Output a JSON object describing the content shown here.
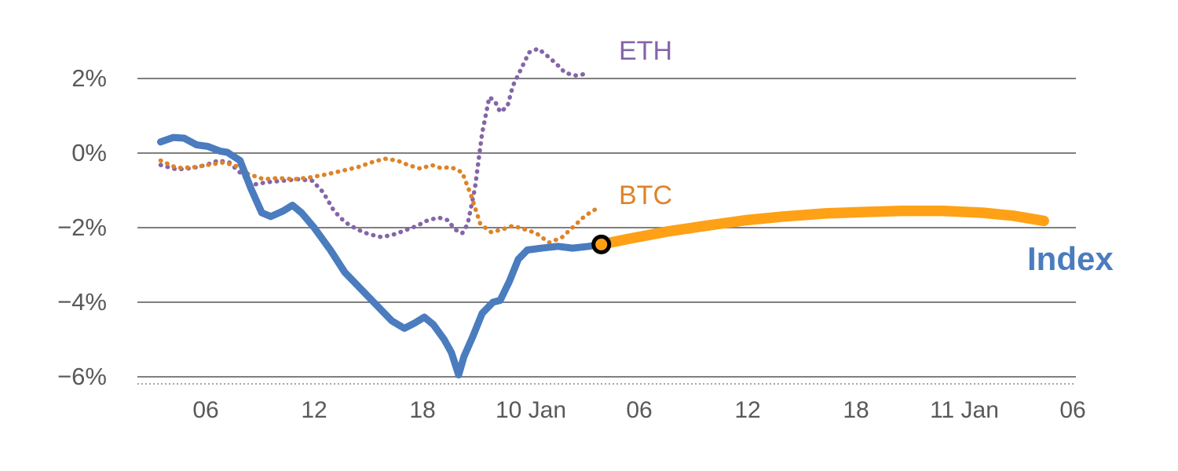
{
  "chart_data": {
    "type": "line",
    "title": "",
    "xlabel": "",
    "ylabel": "",
    "grid": true,
    "legend_position": "inline-annotations",
    "x_axis_note": "t = hours, 6-hour ticks spanning 9 Jan through 11 Jan",
    "xlim_hours": [
      2.2,
      54.3
    ],
    "ylim": [
      -6.6,
      3.1
    ],
    "colors": {
      "grid": "#7f7f7f",
      "axis_baseline": "#a6a6a6",
      "tick_text": "#595959",
      "marker_ring": "#000000"
    },
    "y_ticks": [
      {
        "value": 2,
        "label": "2%"
      },
      {
        "value": 0,
        "label": "0%"
      },
      {
        "value": -2,
        "label": "−2%"
      },
      {
        "value": -4,
        "label": "−4%"
      },
      {
        "value": -6,
        "label": "−6%"
      }
    ],
    "x_ticks": [
      {
        "t": 6,
        "label": "06"
      },
      {
        "t": 12,
        "label": "12"
      },
      {
        "t": 18,
        "label": "18"
      },
      {
        "t": 24,
        "label": "10 Jan"
      },
      {
        "t": 30,
        "label": "06"
      },
      {
        "t": 36,
        "label": "12"
      },
      {
        "t": 42,
        "label": "18"
      },
      {
        "t": 48,
        "label": "11 Jan"
      },
      {
        "t": 54,
        "label": "06"
      }
    ],
    "series": [
      {
        "id": "eth",
        "name": "ETH",
        "color": "#8465A8",
        "style": "dotted",
        "width": 5.5,
        "points": [
          [
            3.5,
            -0.32
          ],
          [
            4.4,
            -0.44
          ],
          [
            5.3,
            -0.4
          ],
          [
            6,
            -0.32
          ],
          [
            6.7,
            -0.2
          ],
          [
            7.3,
            -0.25
          ],
          [
            8,
            -0.57
          ],
          [
            8.6,
            -0.85
          ],
          [
            9.4,
            -0.78
          ],
          [
            10.3,
            -0.74
          ],
          [
            11.1,
            -0.7
          ],
          [
            11.9,
            -0.74
          ],
          [
            12.5,
            -1.05
          ],
          [
            13.1,
            -1.55
          ],
          [
            13.7,
            -1.85
          ],
          [
            14.4,
            -2.05
          ],
          [
            15,
            -2.17
          ],
          [
            15.7,
            -2.25
          ],
          [
            16.3,
            -2.2
          ],
          [
            17,
            -2.08
          ],
          [
            17.7,
            -1.95
          ],
          [
            18.3,
            -1.8
          ],
          [
            18.9,
            -1.73
          ],
          [
            19.4,
            -1.8
          ],
          [
            19.8,
            -2.05
          ],
          [
            20.2,
            -2.15
          ],
          [
            20.5,
            -1.9
          ],
          [
            20.9,
            -0.95
          ],
          [
            21.3,
            0.53
          ],
          [
            21.7,
            1.5
          ],
          [
            22,
            1.4
          ],
          [
            22.3,
            1.1
          ],
          [
            22.7,
            1.25
          ],
          [
            23,
            1.8
          ],
          [
            23.5,
            2.3
          ],
          [
            23.9,
            2.7
          ],
          [
            24.4,
            2.8
          ],
          [
            24.8,
            2.65
          ],
          [
            25.4,
            2.4
          ],
          [
            25.9,
            2.15
          ],
          [
            26.5,
            2.08
          ],
          [
            27,
            2.12
          ]
        ]
      },
      {
        "id": "btc",
        "name": "BTC",
        "color": "#DE8327",
        "style": "dotted",
        "width": 5.5,
        "points": [
          [
            3.5,
            -0.2
          ],
          [
            4.4,
            -0.4
          ],
          [
            5.3,
            -0.38
          ],
          [
            6.1,
            -0.32
          ],
          [
            7,
            -0.25
          ],
          [
            7.7,
            -0.35
          ],
          [
            8.3,
            -0.55
          ],
          [
            9.2,
            -0.7
          ],
          [
            10,
            -0.67
          ],
          [
            10.9,
            -0.7
          ],
          [
            11.8,
            -0.65
          ],
          [
            12.7,
            -0.57
          ],
          [
            13.5,
            -0.48
          ],
          [
            14.4,
            -0.38
          ],
          [
            15.3,
            -0.23
          ],
          [
            15.9,
            -0.15
          ],
          [
            16.6,
            -0.2
          ],
          [
            17.2,
            -0.32
          ],
          [
            17.9,
            -0.42
          ],
          [
            18.5,
            -0.32
          ],
          [
            19,
            -0.4
          ],
          [
            19.6,
            -0.38
          ],
          [
            20.2,
            -0.52
          ],
          [
            20.7,
            -1.15
          ],
          [
            21.2,
            -1.9
          ],
          [
            21.8,
            -2.12
          ],
          [
            22.4,
            -2.05
          ],
          [
            23,
            -1.95
          ],
          [
            23.7,
            -2.05
          ],
          [
            24.3,
            -2.15
          ],
          [
            25,
            -2.4
          ],
          [
            25.7,
            -2.27
          ],
          [
            26.3,
            -2.0
          ],
          [
            27,
            -1.68
          ],
          [
            27.6,
            -1.5
          ]
        ]
      },
      {
        "id": "index",
        "name": "Index",
        "color": "#4A7CBE",
        "style": "solid",
        "width": 9,
        "points": [
          [
            3.5,
            0.3
          ],
          [
            4.2,
            0.42
          ],
          [
            4.8,
            0.4
          ],
          [
            5.5,
            0.22
          ],
          [
            6.1,
            0.18
          ],
          [
            6.8,
            0.05
          ],
          [
            7.2,
            0.02
          ],
          [
            7.9,
            -0.2
          ],
          [
            8.5,
            -0.95
          ],
          [
            9.1,
            -1.6
          ],
          [
            9.6,
            -1.7
          ],
          [
            10.3,
            -1.55
          ],
          [
            10.8,
            -1.4
          ],
          [
            11.3,
            -1.6
          ],
          [
            12,
            -2.0
          ],
          [
            12.9,
            -2.6
          ],
          [
            13.7,
            -3.2
          ],
          [
            14.6,
            -3.65
          ],
          [
            15.5,
            -4.1
          ],
          [
            16.3,
            -4.5
          ],
          [
            17,
            -4.7
          ],
          [
            17.6,
            -4.55
          ],
          [
            18.1,
            -4.4
          ],
          [
            18.6,
            -4.6
          ],
          [
            19.2,
            -5.0
          ],
          [
            19.6,
            -5.35
          ],
          [
            20,
            -5.95
          ],
          [
            20.3,
            -5.45
          ],
          [
            20.8,
            -4.9
          ],
          [
            21.3,
            -4.3
          ],
          [
            21.9,
            -4.0
          ],
          [
            22.3,
            -3.95
          ],
          [
            22.8,
            -3.45
          ],
          [
            23.3,
            -2.85
          ],
          [
            23.8,
            -2.6
          ],
          [
            24.6,
            -2.55
          ],
          [
            25.5,
            -2.5
          ],
          [
            26.3,
            -2.55
          ],
          [
            27.2,
            -2.5
          ],
          [
            27.9,
            -2.45
          ]
        ]
      },
      {
        "id": "index-projection",
        "name": "Index projection",
        "color": "#FEA116",
        "style": "solid",
        "width": 13.5,
        "points": [
          [
            27.9,
            -2.45
          ],
          [
            29.4,
            -2.3
          ],
          [
            31.6,
            -2.1
          ],
          [
            33.7,
            -1.95
          ],
          [
            35.9,
            -1.8
          ],
          [
            38,
            -1.7
          ],
          [
            40.3,
            -1.62
          ],
          [
            42.4,
            -1.58
          ],
          [
            44.6,
            -1.55
          ],
          [
            46.8,
            -1.55
          ],
          [
            49,
            -1.6
          ],
          [
            50.7,
            -1.68
          ],
          [
            52.4,
            -1.82
          ]
        ]
      }
    ],
    "marker": {
      "t": 27.9,
      "value": -2.45,
      "radius": 10,
      "fill": "#FEA116",
      "stroke": "#000000",
      "stroke_width": 5
    }
  }
}
